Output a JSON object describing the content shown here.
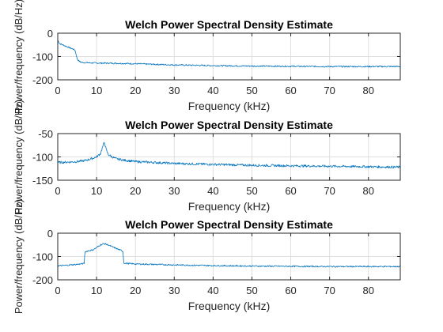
{
  "figure": {
    "background": "#ffffff"
  },
  "chart_data": [
    {
      "type": "line",
      "title": "Welch Power Spectral Density Estimate",
      "xlabel": "Frequency (kHz)",
      "ylabel": "Power/frequency (dB/Hz)",
      "xlim": [
        0,
        88.2
      ],
      "ylim": [
        -200,
        0
      ],
      "xticks": [
        "0",
        "10",
        "20",
        "30",
        "40",
        "50",
        "60",
        "70",
        "80"
      ],
      "yticks": [
        "0",
        "-100",
        "-200"
      ],
      "grid": true,
      "series": [
        {
          "color": "#0072bd",
          "x": [
            0,
            0.5,
            1,
            2,
            3,
            4,
            4.5,
            5,
            5.5,
            6,
            8,
            10,
            15,
            20,
            30,
            40,
            50,
            60,
            70,
            80,
            88.2
          ],
          "y": [
            -30,
            -45,
            -48,
            -55,
            -62,
            -68,
            -75,
            -110,
            -120,
            -125,
            -127,
            -128,
            -129,
            -131,
            -136,
            -139,
            -141,
            -142,
            -143,
            -143,
            -143
          ]
        }
      ]
    },
    {
      "type": "line",
      "title": "Welch Power Spectral Density Estimate",
      "xlabel": "Frequency (kHz)",
      "ylabel": "Power/frequency (dB/Hz)",
      "xlim": [
        0,
        88.2
      ],
      "ylim": [
        -150,
        -50
      ],
      "xticks": [
        "0",
        "10",
        "20",
        "30",
        "40",
        "50",
        "60",
        "70",
        "80"
      ],
      "yticks": [
        "-50",
        "-100",
        "-150"
      ],
      "grid": true,
      "series": [
        {
          "color": "#0072bd",
          "x": [
            0,
            3,
            5,
            7,
            9,
            10,
            11,
            11.5,
            12,
            12.5,
            13,
            14,
            15,
            17,
            20,
            25,
            30,
            40,
            50,
            60,
            70,
            80,
            88.2
          ],
          "y": [
            -112,
            -111,
            -110,
            -108,
            -103,
            -100,
            -93,
            -80,
            -68,
            -85,
            -95,
            -100,
            -104,
            -107,
            -110,
            -112,
            -114,
            -116,
            -118,
            -119,
            -120,
            -121,
            -122
          ]
        }
      ]
    },
    {
      "type": "line",
      "title": "Welch Power Spectral Density Estimate",
      "xlabel": "Frequency (kHz)",
      "ylabel": "Power/frequency (dB/Hz)",
      "xlim": [
        0,
        88.2
      ],
      "ylim": [
        -200,
        0
      ],
      "xticks": [
        "0",
        "10",
        "20",
        "30",
        "40",
        "50",
        "60",
        "70",
        "80"
      ],
      "yticks": [
        "0",
        "-100",
        "-200"
      ],
      "grid": true,
      "series": [
        {
          "color": "#0072bd",
          "x": [
            0,
            2,
            4,
            6,
            6.8,
            7,
            8,
            9,
            10,
            11,
            12,
            13,
            14,
            15,
            16,
            16.8,
            17,
            18,
            20,
            30,
            40,
            50,
            60,
            70,
            80,
            88.2
          ],
          "y": [
            -140,
            -138,
            -135,
            -132,
            -130,
            -80,
            -75,
            -72,
            -62,
            -50,
            -45,
            -50,
            -58,
            -65,
            -72,
            -78,
            -128,
            -130,
            -132,
            -136,
            -139,
            -141,
            -142,
            -143,
            -143,
            -143
          ]
        }
      ]
    }
  ]
}
